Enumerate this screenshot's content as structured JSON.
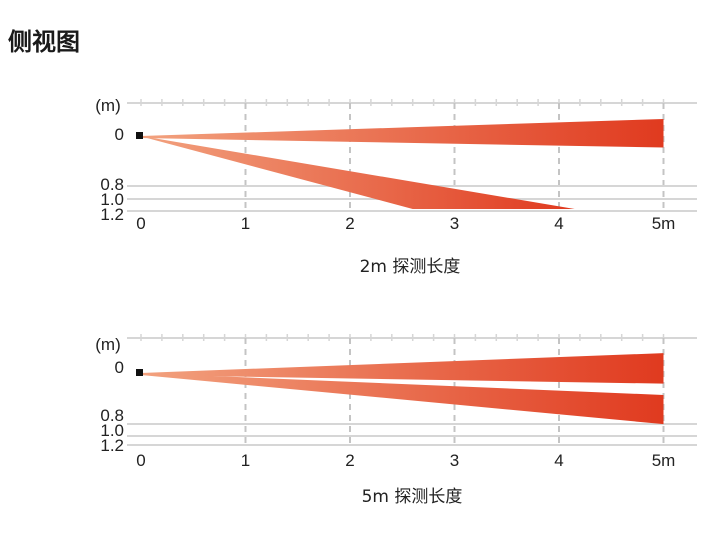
{
  "title": "侧视图",
  "colors": {
    "beam_start": "#f2a27f",
    "beam_end": "#e03a1f",
    "grid": "#c4c4c4",
    "line": "#d6d6d6",
    "ink": "#222222"
  },
  "diagrams": [
    {
      "id": "d2m",
      "y_unit": "(m)",
      "y_levels": [
        "0",
        "0.8",
        "1.0",
        "1.2"
      ],
      "x_ticks": [
        "0",
        "1",
        "2",
        "3",
        "4",
        "5m"
      ],
      "caption": "2m  探测长度",
      "beams": [
        {
          "start": [
            0,
            0
          ],
          "end_x": 5,
          "end_top": -0.25,
          "end_bottom": 0.17
        },
        {
          "start": [
            0,
            0
          ],
          "end_x": 4.15,
          "end_top": 1.2,
          "end_bottom": 1.2,
          "floor_from_x": 2.6
        }
      ]
    },
    {
      "id": "d5m",
      "y_unit": "(m)",
      "y_levels": [
        "0",
        "0.8",
        "1.0",
        "1.2"
      ],
      "x_ticks": [
        "0",
        "1",
        "2",
        "3",
        "4",
        "5m"
      ],
      "caption": "5m  探测长度",
      "beams": [
        {
          "start": [
            0,
            0
          ],
          "end_x": 5,
          "end_top": -0.28,
          "end_bottom": 0.15
        },
        {
          "start": [
            0,
            0
          ],
          "end_x": 5,
          "end_top": 0.31,
          "end_bottom": 0.72
        }
      ]
    }
  ]
}
